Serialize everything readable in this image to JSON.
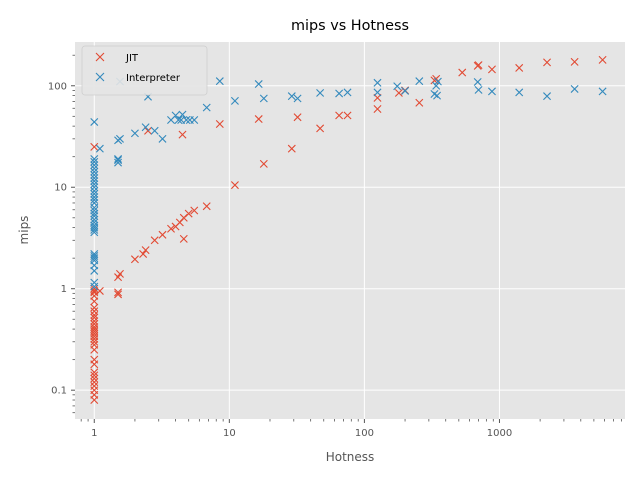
{
  "chart_data": {
    "type": "scatter",
    "title": "mips vs Hotness",
    "xlabel": "Hotness",
    "ylabel": "mips",
    "xscale": "log",
    "yscale": "log",
    "xlim": [
      0.72,
      8500
    ],
    "ylim": [
      0.052,
      270
    ],
    "grid": true,
    "legend_position": "top-left",
    "x_ticks": [
      {
        "value": 1,
        "label": "1"
      },
      {
        "value": 10,
        "label": "10"
      },
      {
        "value": 100,
        "label": "100"
      },
      {
        "value": 1000,
        "label": "1000"
      }
    ],
    "y_ticks": [
      {
        "value": 0.1,
        "label": "0.1"
      },
      {
        "value": 1,
        "label": "1"
      },
      {
        "value": 10,
        "label": "10"
      },
      {
        "value": 100,
        "label": "100"
      }
    ],
    "series": [
      {
        "name": "JIT",
        "color": "#E24A33",
        "marker": "x",
        "points": [
          [
            1,
            0.08
          ],
          [
            1,
            0.09
          ],
          [
            1,
            0.1
          ],
          [
            1,
            0.11
          ],
          [
            1,
            0.12
          ],
          [
            1,
            0.13
          ],
          [
            1,
            0.14
          ],
          [
            1,
            0.15
          ],
          [
            1,
            0.18
          ],
          [
            1,
            0.2
          ],
          [
            1,
            0.25
          ],
          [
            1,
            0.28
          ],
          [
            1,
            0.3
          ],
          [
            1,
            0.32
          ],
          [
            1,
            0.34
          ],
          [
            1,
            0.36
          ],
          [
            1,
            0.38
          ],
          [
            1,
            0.4
          ],
          [
            1,
            0.42
          ],
          [
            1,
            0.45
          ],
          [
            1,
            0.48
          ],
          [
            1,
            0.52
          ],
          [
            1,
            0.55
          ],
          [
            1,
            0.6
          ],
          [
            1,
            0.65
          ],
          [
            1,
            0.75
          ],
          [
            1,
            0.85
          ],
          [
            1,
            0.92
          ],
          [
            1,
            0.95
          ],
          [
            1,
            1.0
          ],
          [
            1,
            25
          ],
          [
            1.1,
            0.95
          ],
          [
            1.5,
            0.88
          ],
          [
            1.5,
            0.92
          ],
          [
            1.5,
            1.3
          ],
          [
            1.55,
            1.4
          ],
          [
            2,
            1.95
          ],
          [
            2.3,
            2.2
          ],
          [
            2.4,
            2.4
          ],
          [
            2.8,
            3.0
          ],
          [
            3.2,
            3.4
          ],
          [
            3.7,
            3.9
          ],
          [
            4.0,
            4.1
          ],
          [
            4.3,
            4.5
          ],
          [
            4.6,
            5.0
          ],
          [
            4.6,
            3.1
          ],
          [
            5.0,
            5.5
          ],
          [
            5.5,
            5.9
          ],
          [
            6.8,
            6.5
          ],
          [
            2.5,
            36
          ],
          [
            4.5,
            33
          ],
          [
            8.5,
            42
          ],
          [
            11,
            10.5
          ],
          [
            16.5,
            47
          ],
          [
            18,
            17
          ],
          [
            29,
            24
          ],
          [
            32,
            49
          ],
          [
            47,
            38
          ],
          [
            65,
            51
          ],
          [
            75,
            51
          ],
          [
            125,
            59
          ],
          [
            125,
            76
          ],
          [
            180,
            85
          ],
          [
            200,
            90
          ],
          [
            255,
            68
          ],
          [
            330,
            113
          ],
          [
            340,
            117
          ],
          [
            530,
            135
          ],
          [
            690,
            157
          ],
          [
            700,
            160
          ],
          [
            880,
            145
          ],
          [
            1400,
            150
          ],
          [
            2250,
            170
          ],
          [
            3600,
            172
          ],
          [
            5800,
            180
          ]
        ]
      },
      {
        "name": "Interpreter",
        "color": "#348ABD",
        "marker": "x",
        "points": [
          [
            1,
            1.05
          ],
          [
            1,
            1.15
          ],
          [
            1,
            1.5
          ],
          [
            1,
            1.7
          ],
          [
            1,
            1.9
          ],
          [
            1,
            2.0
          ],
          [
            1,
            2.1
          ],
          [
            1,
            2.2
          ],
          [
            1,
            3.6
          ],
          [
            1,
            3.8
          ],
          [
            1,
            4.0
          ],
          [
            1,
            4.2
          ],
          [
            1,
            4.5
          ],
          [
            1,
            4.8
          ],
          [
            1,
            5.2
          ],
          [
            1,
            5.5
          ],
          [
            1,
            5.9
          ],
          [
            1,
            6.3
          ],
          [
            1,
            7.0
          ],
          [
            1,
            7.5
          ],
          [
            1,
            8.0
          ],
          [
            1,
            8.6
          ],
          [
            1,
            9.2
          ],
          [
            1,
            10
          ],
          [
            1,
            10.7
          ],
          [
            1,
            11.5
          ],
          [
            1,
            12.3
          ],
          [
            1,
            13.2
          ],
          [
            1,
            14.2
          ],
          [
            1,
            15.3
          ],
          [
            1,
            16.5
          ],
          [
            1,
            17.8
          ],
          [
            1,
            19
          ],
          [
            1,
            44
          ],
          [
            1.1,
            24
          ],
          [
            1.5,
            17.5
          ],
          [
            1.5,
            18.5
          ],
          [
            1.5,
            19
          ],
          [
            1.5,
            29
          ],
          [
            1.55,
            30
          ],
          [
            1.55,
            110
          ],
          [
            2.0,
            34
          ],
          [
            2.4,
            39
          ],
          [
            2.5,
            78
          ],
          [
            2.8,
            36
          ],
          [
            3.2,
            30
          ],
          [
            3.7,
            46
          ],
          [
            4.0,
            51
          ],
          [
            4.2,
            46
          ],
          [
            4.4,
            46
          ],
          [
            4.5,
            52
          ],
          [
            4.8,
            46
          ],
          [
            5.1,
            46
          ],
          [
            5.5,
            46
          ],
          [
            6.8,
            61
          ],
          [
            8.5,
            111
          ],
          [
            11,
            71
          ],
          [
            16.5,
            104
          ],
          [
            18,
            75
          ],
          [
            29,
            79
          ],
          [
            32,
            75
          ],
          [
            47,
            85
          ],
          [
            65,
            84
          ],
          [
            75,
            86
          ],
          [
            125,
            86
          ],
          [
            125,
            107
          ],
          [
            175,
            99
          ],
          [
            200,
            89
          ],
          [
            255,
            111
          ],
          [
            330,
            83
          ],
          [
            340,
            100
          ],
          [
            345,
            80
          ],
          [
            350,
            110
          ],
          [
            690,
            109
          ],
          [
            700,
            91
          ],
          [
            880,
            88
          ],
          [
            1400,
            86
          ],
          [
            2250,
            79
          ],
          [
            3600,
            93
          ],
          [
            5800,
            88
          ]
        ]
      }
    ]
  }
}
